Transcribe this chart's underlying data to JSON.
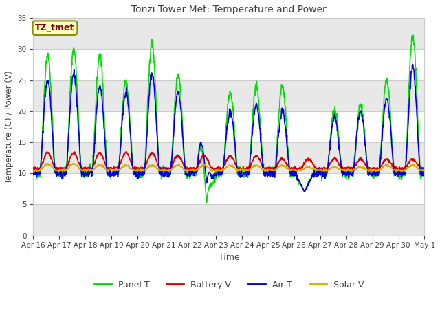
{
  "title": "Tonzi Tower Met: Temperature and Power",
  "xlabel": "Time",
  "ylabel": "Temperature (C) / Power (V)",
  "ylim": [
    0,
    35
  ],
  "yticks": [
    0,
    5,
    10,
    15,
    20,
    25,
    30,
    35
  ],
  "fig_bg": "#ffffff",
  "plot_bg": "#ffffff",
  "band_color": "#e8e8e8",
  "annotation_label": "TZ_tmet",
  "annotation_fg": "#8B0000",
  "annotation_bg": "#ffffc0",
  "annotation_edge": "#8B8B00",
  "x_labels": [
    "Apr 16",
    "Apr 17",
    "Apr 18",
    "Apr 19",
    "Apr 20",
    "Apr 21",
    "Apr 22",
    "Apr 23",
    "Apr 24",
    "Apr 25",
    "Apr 26",
    "Apr 27",
    "Apr 28",
    "Apr 29",
    "Apr 30",
    "May 1"
  ],
  "series": {
    "Panel T": {
      "color": "#00dd00",
      "lw": 1.2
    },
    "Battery V": {
      "color": "#dd0000",
      "lw": 1.2
    },
    "Air T": {
      "color": "#0000dd",
      "lw": 1.2
    },
    "Solar V": {
      "color": "#ddaa00",
      "lw": 1.2
    }
  }
}
